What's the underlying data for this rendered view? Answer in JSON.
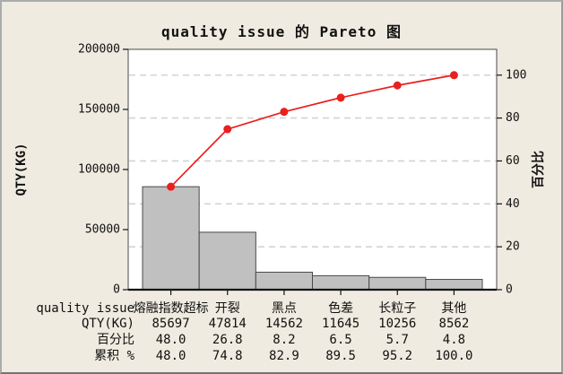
{
  "chart_data": {
    "type": "pareto",
    "title": "quality issue 的 Pareto 图",
    "categories": [
      "熔融指数超标",
      "开裂",
      "黑点",
      "色差",
      "长粒子",
      "其他"
    ],
    "series": [
      {
        "name": "QTY(KG)",
        "type": "bar",
        "axis": "left",
        "values": [
          85697,
          47814,
          14562,
          11645,
          10256,
          8562
        ]
      },
      {
        "name": "累积 %",
        "type": "line",
        "axis": "right",
        "values": [
          48.0,
          74.8,
          82.9,
          89.5,
          95.2,
          100.0
        ]
      }
    ],
    "percent_values": [
      48.0,
      26.8,
      8.2,
      6.5,
      5.7,
      4.8
    ],
    "left_axis": {
      "label": "QTY(KG)",
      "range": [
        0,
        200000
      ],
      "ticks": [
        0,
        50000,
        100000,
        150000,
        200000
      ]
    },
    "right_axis": {
      "label": "百分比",
      "range": [
        0,
        100
      ],
      "ticks": [
        0,
        20,
        40,
        60,
        80,
        100
      ]
    },
    "grid": {
      "horizontal_dashed_at_percent": [
        20,
        40,
        60,
        80,
        100
      ]
    }
  },
  "table": {
    "row_headers": [
      "quality issue",
      "QTY(KG)",
      "百分比",
      "累积 %"
    ],
    "rows": [
      [
        "熔融指数超标",
        "开裂",
        "黑点",
        "色差",
        "长粒子",
        "其他"
      ],
      [
        "85697",
        "47814",
        "14562",
        "11645",
        "10256",
        "8562"
      ],
      [
        "48.0",
        "26.8",
        "8.2",
        "6.5",
        "5.7",
        "4.8"
      ],
      [
        "48.0",
        "74.8",
        "82.9",
        "89.5",
        "95.2",
        "100.0"
      ]
    ]
  },
  "colors": {
    "background": "#EFEBE0",
    "plot_background": "#FFFFFF",
    "bar_fill": "#C0C0C0",
    "bar_border": "#4A4A4A",
    "cumulative_line": "#E8201E",
    "marker_fill": "#E8201E",
    "gridline": "#D3D3D3",
    "plot_border": "#4A4A4A",
    "axis_line": "#141414",
    "text": "#111111",
    "figure_border": "#A6A6A6"
  }
}
